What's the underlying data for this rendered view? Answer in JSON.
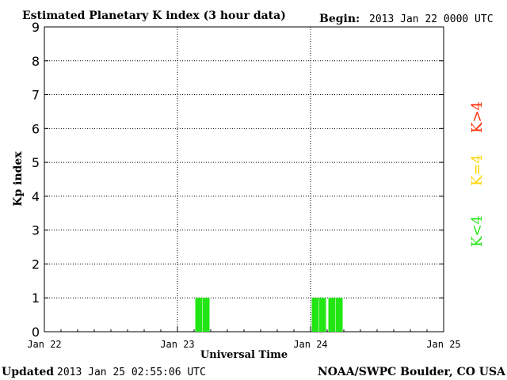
{
  "header": {
    "title": "Estimated Planetary K index (3 hour data)",
    "begin_label": "Begin:",
    "begin_value": "2013 Jan 22 0000 UTC"
  },
  "footer": {
    "updated_label": "Updated",
    "updated_value": "2013 Jan 25 02:55:06 UTC",
    "source": "NOAA/SWPC Boulder, CO USA"
  },
  "legend": [
    {
      "text": "K>4",
      "color": "#ff2a00"
    },
    {
      "text": "K=4",
      "color": "#ffd400"
    },
    {
      "text": "K<4",
      "color": "#22e614"
    }
  ],
  "chart_data": {
    "type": "bar",
    "ylabel": "Kp index",
    "xlabel": "Universal Time",
    "ylim": [
      0,
      9
    ],
    "yticks": [
      "0",
      "1",
      "2",
      "3",
      "4",
      "5",
      "6",
      "7",
      "8",
      "9"
    ],
    "xticks": [
      "Jan 22",
      "Jan 23",
      "Jan 24",
      "Jan 25"
    ],
    "grid": true,
    "bar_color": "#22e614",
    "series": [
      {
        "values": [
          {
            "x": "2013-01-23 03:00",
            "y": 1
          },
          {
            "x": "2013-01-24 00:00",
            "y": 1
          },
          {
            "x": "2013-01-24 03:00",
            "y": 1
          }
        ]
      }
    ]
  }
}
